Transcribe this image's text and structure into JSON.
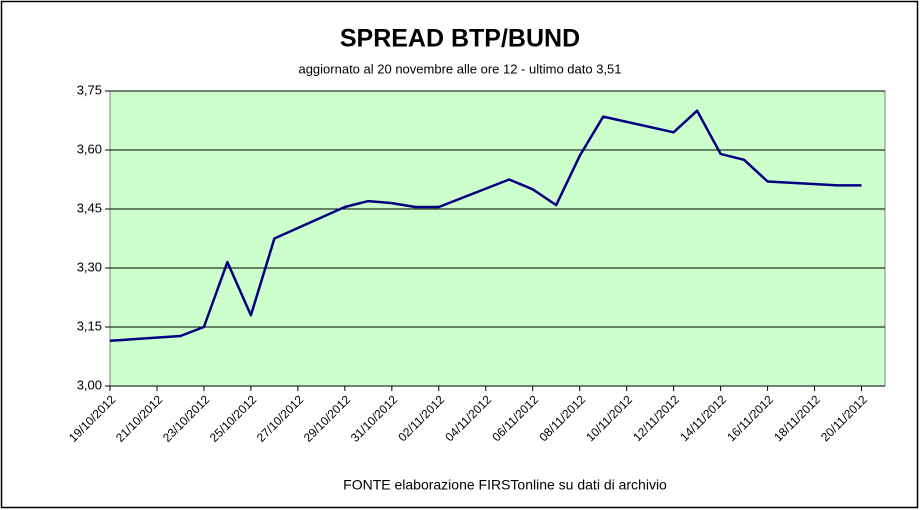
{
  "chart_data": {
    "type": "line",
    "title": "SPREAD  BTP/BUND",
    "subtitle": "aggiornato al 20 novembre alle ore 12 - ultimo dato 3,51",
    "source": "FONTE elaborazione FIRSTonline su dati di archivio",
    "x": [
      "19/10/2012",
      "22/10/2012",
      "23/10/2012",
      "24/10/2012",
      "25/10/2012",
      "26/10/2012",
      "29/10/2012",
      "30/10/2012",
      "31/10/2012",
      "01/11/2012",
      "02/11/2012",
      "05/11/2012",
      "06/11/2012",
      "07/11/2012",
      "08/11/2012",
      "09/11/2012",
      "12/11/2012",
      "13/11/2012",
      "14/11/2012",
      "15/11/2012",
      "16/11/2012",
      "19/11/2012",
      "20/11/2012"
    ],
    "series": [
      {
        "name": "BTP/BUND",
        "color": "#000080",
        "values": [
          3.115,
          3.127,
          3.15,
          3.315,
          3.18,
          3.375,
          3.455,
          3.47,
          3.465,
          3.455,
          3.455,
          3.525,
          3.5,
          3.46,
          3.585,
          3.685,
          3.645,
          3.7,
          3.59,
          3.575,
          3.52,
          3.51,
          3.51
        ]
      }
    ],
    "xlim": [
      "19/10/2012",
      "21/11/2012"
    ],
    "xticks": [
      "19/10/2012",
      "21/10/2012",
      "23/10/2012",
      "25/10/2012",
      "27/10/2012",
      "29/10/2012",
      "31/10/2012",
      "02/11/2012",
      "04/11/2012",
      "06/11/2012",
      "08/11/2012",
      "10/11/2012",
      "12/11/2012",
      "14/11/2012",
      "16/11/2012",
      "18/11/2012",
      "20/11/2012"
    ],
    "ylim": [
      3.0,
      3.75
    ],
    "yticks": [
      {
        "value": 3.0,
        "label": "3,00"
      },
      {
        "value": 3.15,
        "label": "3,15"
      },
      {
        "value": 3.3,
        "label": "3,30"
      },
      {
        "value": 3.45,
        "label": "3,45"
      },
      {
        "value": 3.6,
        "label": "3,60"
      },
      {
        "value": 3.75,
        "label": "3,75"
      }
    ],
    "grid": true,
    "plot_background": "#ccffcc"
  }
}
